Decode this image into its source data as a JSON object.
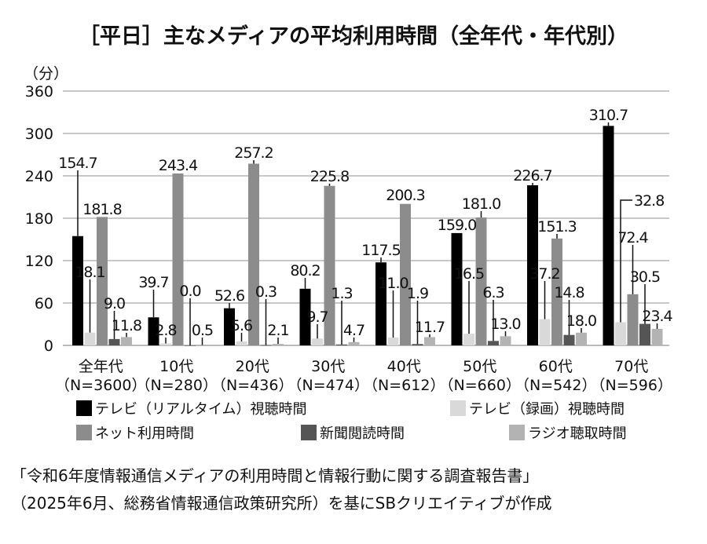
{
  "chart_data": {
    "type": "bar",
    "title": "［平日］主なメディアの平均利用時間（全年代・年代別）",
    "ylabel": "（分）",
    "ylim": [
      0,
      360
    ],
    "yticks": [
      "0",
      "60",
      "120",
      "180",
      "240",
      "300",
      "360"
    ],
    "grid": true,
    "legend_position": "bottom",
    "categories": [
      {
        "name": "全年代",
        "n": "（N=3600）"
      },
      {
        "name": "10代",
        "n": "（N=280）"
      },
      {
        "name": "20代",
        "n": "（N=436）"
      },
      {
        "name": "30代",
        "n": "（N=474）"
      },
      {
        "name": "40代",
        "n": "（N=612）"
      },
      {
        "name": "50代",
        "n": "（N=660）"
      },
      {
        "name": "60代",
        "n": "（N=542）"
      },
      {
        "name": "70代",
        "n": "（N=596）"
      }
    ],
    "series": [
      {
        "name": "テレビ（リアルタイム）視聴時間",
        "color": "#000000",
        "values": [
          154.7,
          39.7,
          52.6,
          80.2,
          117.5,
          159.0,
          226.7,
          310.7
        ]
      },
      {
        "name": "テレビ（録画）視聴時間",
        "color": "#d9d9d9",
        "values": [
          18.1,
          2.8,
          5.6,
          9.7,
          11.0,
          16.5,
          37.2,
          32.8
        ]
      },
      {
        "name": "ネット利用時間",
        "color": "#8c8c8c",
        "values": [
          181.8,
          243.4,
          257.2,
          225.8,
          200.3,
          181.0,
          151.3,
          72.4
        ]
      },
      {
        "name": "新聞閲読時間",
        "color": "#555555",
        "values": [
          9.0,
          0.0,
          0.3,
          1.3,
          1.9,
          6.3,
          14.8,
          30.5
        ]
      },
      {
        "name": "ラジオ聴取時間",
        "color": "#b3b3b3",
        "values": [
          11.8,
          0.5,
          2.1,
          4.7,
          11.7,
          13.0,
          18.0,
          23.4
        ]
      }
    ]
  },
  "footer": {
    "line1": "「令和6年度情報通信メディアの利用時間と情報行動に関する調査報告書」",
    "line2": "（2025年6月、総務省情報通信政策研究所）を基にSBクリエイティブが作成"
  }
}
